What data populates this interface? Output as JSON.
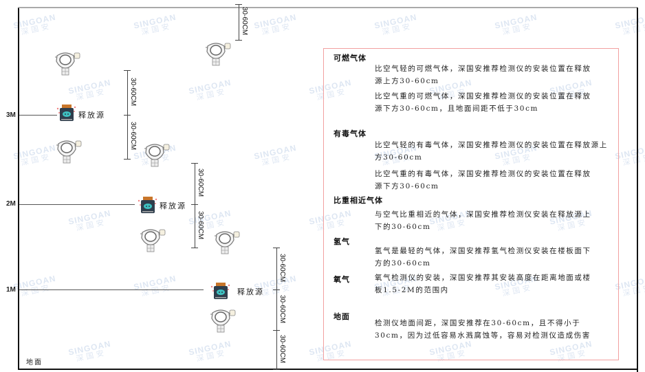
{
  "watermark": {
    "brand": "SINGOAN",
    "cn": "深国安"
  },
  "levels": [
    "3M",
    "2M",
    "1M"
  ],
  "floor_label": "地面",
  "source_label": "释放源",
  "dimension_label": "30-60CM",
  "notes": {
    "combustible": {
      "title": "可燃气体",
      "lighter": "比空气轻的可燃气体，深国安推荐检测仪的安装位置在释放源上方30-60cm",
      "heavier": "比空气重的可燃气体，深国安推荐检测仪的安装位置在释放源下方30-60cm，且地面间距不低于30cm"
    },
    "toxic": {
      "title": "有毒气体",
      "lighter": "比空气轻的有毒气体，深国安推荐检测仪的安装位置在释放源上方30-60cm",
      "heavier": "比空气重的有毒气体，深国安推荐检测仪的安装位置在释放源下方30-60cm"
    },
    "similar": {
      "title": "比重相近气体",
      "text": "与空气比重相近的气体，深国安推荐检测仪安装在释放源上下的30-60cm"
    },
    "hydrogen": {
      "title": "氢气",
      "text": "氢气是最轻的气体，深国安推荐氢气检测仪安装在楼板面下方的30-60cm"
    },
    "oxygen": {
      "title": "氧气",
      "text": "氧气检测仪的安装，深国安推荐其安装高度在距离地面或楼板1.5-2M的范围内"
    },
    "floor": {
      "title": "地面",
      "text": "检测仪地面间距，深国安推荐在30-60cm，且不得小于30cm，因为过低容易水溅腐蚀等，容易对检测仪造成伤害"
    }
  },
  "colors": {
    "box_border": "#f2a0a0",
    "source_body": "#2f3e4d",
    "source_face": "#3ec1c1",
    "source_cap": "#c9762a"
  }
}
